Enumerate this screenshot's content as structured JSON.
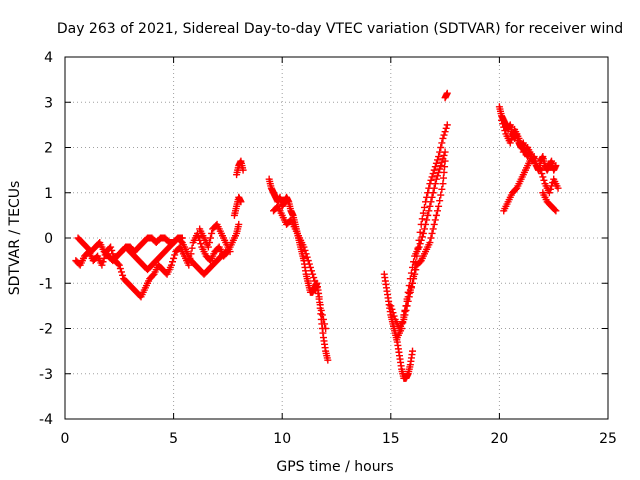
{
  "chart_data": {
    "type": "scatter",
    "title": "Day 263 of 2021, Sidereal Day-to-day VTEC variation (SDTVAR) for receiver wind",
    "xlabel": "GPS time / hours",
    "ylabel": "SDTVAR / TECUs",
    "xlim": [
      0,
      25
    ],
    "ylim": [
      -4,
      4
    ],
    "xticks": [
      "0",
      "5",
      "10",
      "15",
      "20",
      "25"
    ],
    "yticks": [
      "-4",
      "-3",
      "-2",
      "-1",
      "0",
      "1",
      "2",
      "3",
      "4"
    ],
    "grid": true,
    "marker": "+",
    "series": [
      {
        "name": "SDTVAR",
        "color": "#ff0000",
        "segments": [
          {
            "x": [
              0.5,
              0.7,
              0.9,
              1.1,
              1.3,
              1.5,
              1.7,
              1.9,
              2.1,
              2.3,
              2.5,
              2.7,
              2.9,
              3.1,
              3.3,
              3.5,
              3.7,
              3.9,
              4.1,
              4.3,
              4.5,
              4.7,
              4.9,
              5.1,
              5.3,
              5.5,
              5.7,
              5.9,
              6.1,
              6.3,
              6.5,
              6.7,
              6.9,
              7.1,
              7.3,
              7.5,
              7.7,
              7.9,
              8.0
            ],
            "y": [
              -0.5,
              -0.6,
              -0.4,
              -0.3,
              -0.5,
              -0.4,
              -0.6,
              -0.3,
              -0.2,
              -0.5,
              -0.6,
              -0.9,
              -1.0,
              -1.1,
              -1.2,
              -1.3,
              -1.1,
              -0.9,
              -0.8,
              -0.6,
              -0.7,
              -0.8,
              -0.6,
              -0.3,
              -0.2,
              -0.4,
              -0.6,
              -0.1,
              0.1,
              -0.2,
              -0.4,
              -0.5,
              -0.3,
              -0.2,
              -0.4,
              -0.3,
              -0.1,
              0.1,
              0.3
            ]
          },
          {
            "x": [
              0.6,
              0.8,
              1.0,
              1.2,
              1.4,
              1.6,
              1.8,
              2.0,
              2.2,
              2.4,
              2.6,
              2.8,
              3.0,
              3.2,
              3.4,
              3.6,
              3.8,
              4.0,
              4.2,
              4.4,
              4.6,
              4.8,
              5.0,
              5.2,
              5.4,
              5.6,
              5.8,
              6.0,
              6.2,
              6.4,
              6.6,
              6.8,
              7.0,
              7.2,
              7.4
            ],
            "y": [
              0.0,
              -0.1,
              -0.2,
              -0.3,
              -0.2,
              -0.1,
              -0.3,
              -0.4,
              -0.5,
              -0.4,
              -0.3,
              -0.2,
              -0.3,
              -0.4,
              -0.5,
              -0.6,
              -0.7,
              -0.6,
              -0.5,
              -0.4,
              -0.3,
              -0.2,
              -0.1,
              0.0,
              -0.1,
              -0.3,
              -0.5,
              -0.6,
              -0.7,
              -0.8,
              -0.7,
              -0.6,
              -0.5,
              -0.4,
              -0.3
            ]
          },
          {
            "x": [
              2.6,
              2.8,
              3.0,
              3.2,
              3.4,
              3.6,
              3.8,
              4.0,
              4.2,
              4.4,
              4.6,
              4.8,
              5.0,
              5.2,
              5.4
            ],
            "y": [
              -0.3,
              -0.2,
              -0.2,
              -0.3,
              -0.2,
              -0.1,
              0.0,
              0.0,
              -0.1,
              0.0,
              0.0,
              -0.1,
              -0.1,
              0.0,
              0.0
            ]
          },
          {
            "x": [
              6.2,
              6.4,
              6.6,
              6.8,
              7.0,
              7.2,
              7.4,
              7.6
            ],
            "y": [
              0.2,
              0.0,
              -0.2,
              0.2,
              0.3,
              0.1,
              -0.1,
              -0.3
            ]
          },
          {
            "x": [
              7.9,
              8.0,
              8.1,
              8.2
            ],
            "y": [
              1.4,
              1.6,
              1.7,
              1.5
            ]
          },
          {
            "x": [
              7.8,
              7.9,
              8.0,
              8.1
            ],
            "y": [
              0.5,
              0.7,
              0.9,
              0.8
            ]
          },
          {
            "x": [
              9.4,
              9.5,
              9.6,
              9.7,
              9.8,
              9.9,
              10.0,
              10.1,
              10.2,
              10.3,
              10.4,
              10.5,
              10.6,
              10.7,
              10.8,
              10.9,
              11.0,
              11.1,
              11.2,
              11.3,
              11.4,
              11.5,
              11.6,
              11.7,
              11.8,
              11.9,
              12.0,
              12.1
            ],
            "y": [
              1.3,
              1.1,
              1.0,
              0.9,
              0.8,
              0.9,
              0.7,
              0.8,
              0.9,
              0.8,
              0.6,
              0.5,
              0.3,
              0.1,
              -0.1,
              -0.3,
              -0.5,
              -0.8,
              -1.0,
              -1.2,
              -1.2,
              -1.1,
              -1.0,
              -1.3,
              -1.8,
              -2.2,
              -2.5,
              -2.7
            ]
          },
          {
            "x": [
              9.6,
              9.8,
              10.0,
              10.2,
              10.4,
              10.6,
              10.8,
              11.0,
              11.2,
              11.4,
              11.6,
              11.8,
              12.0
            ],
            "y": [
              0.6,
              0.7,
              0.5,
              0.3,
              0.4,
              0.2,
              0.0,
              -0.2,
              -0.5,
              -0.8,
              -1.1,
              -1.6,
              -2.0
            ]
          },
          {
            "x": [
              14.7,
              14.8,
              14.9,
              15.0,
              15.1,
              15.2,
              15.3,
              15.4,
              15.5,
              15.6,
              15.7,
              15.8,
              15.9,
              16.0
            ],
            "y": [
              -0.8,
              -1.1,
              -1.4,
              -1.7,
              -1.9,
              -2.1,
              -2.3,
              -2.6,
              -2.9,
              -3.1,
              -3.1,
              -3.0,
              -2.8,
              -2.5
            ]
          },
          {
            "x": [
              15.0,
              15.2,
              15.4,
              15.6,
              15.8,
              16.0,
              16.2,
              16.4,
              16.6,
              16.8,
              17.0,
              17.2,
              17.4,
              17.6
            ],
            "y": [
              -1.5,
              -1.8,
              -2.0,
              -1.8,
              -1.4,
              -1.0,
              -0.4,
              0.3,
              0.8,
              1.2,
              1.5,
              1.8,
              2.2,
              2.5
            ]
          },
          {
            "x": [
              15.3,
              15.5,
              15.7,
              15.9,
              16.1,
              16.3,
              16.5,
              16.7,
              16.9,
              17.1,
              17.3,
              17.5
            ],
            "y": [
              -2.2,
              -2.0,
              -1.5,
              -0.9,
              -0.4,
              -0.2,
              0.1,
              0.5,
              0.9,
              1.3,
              1.6,
              1.9
            ]
          },
          {
            "x": [
              15.6,
              15.8,
              16.0,
              16.2,
              16.4,
              16.6,
              16.8,
              17.0,
              17.2,
              17.4,
              17.5
            ],
            "y": [
              -1.7,
              -1.3,
              -1.0,
              -0.6,
              -0.5,
              -0.3,
              -0.1,
              0.3,
              0.7,
              1.2,
              1.7
            ]
          },
          {
            "x": [
              17.5,
              17.6
            ],
            "y": [
              3.1,
              3.2
            ]
          },
          {
            "x": [
              20.0,
              20.1,
              20.2,
              20.3,
              20.4,
              20.5,
              20.6,
              20.7,
              20.8,
              20.9,
              21.0,
              21.1,
              21.2,
              21.3,
              21.4,
              21.5,
              21.6,
              21.7,
              21.8,
              21.9,
              22.0,
              22.1,
              22.2,
              22.3,
              22.4,
              22.5,
              22.6
            ],
            "y": [
              2.9,
              2.7,
              2.6,
              2.5,
              2.4,
              2.5,
              2.3,
              2.2,
              2.3,
              2.1,
              2.0,
              2.1,
              1.9,
              1.8,
              1.9,
              1.7,
              1.8,
              1.6,
              1.5,
              1.7,
              1.8,
              1.6,
              1.5,
              1.6,
              1.7,
              1.5,
              1.6
            ]
          },
          {
            "x": [
              20.1,
              20.3,
              20.5,
              20.7,
              20.9,
              21.1,
              21.3,
              21.5,
              21.7,
              21.9,
              22.1,
              22.3,
              22.5,
              22.7
            ],
            "y": [
              2.6,
              2.3,
              2.1,
              2.4,
              2.2,
              1.9,
              2.0,
              1.8,
              1.6,
              1.5,
              1.2,
              1.0,
              1.3,
              1.1
            ]
          },
          {
            "x": [
              20.2,
              20.4,
              20.6,
              20.8,
              21.0,
              21.2,
              21.4
            ],
            "y": [
              0.6,
              0.8,
              1.0,
              1.1,
              1.3,
              1.5,
              1.7
            ]
          },
          {
            "x": [
              22.0,
              22.2,
              22.4,
              22.6
            ],
            "y": [
              1.0,
              0.8,
              0.7,
              0.6
            ]
          }
        ]
      }
    ]
  }
}
